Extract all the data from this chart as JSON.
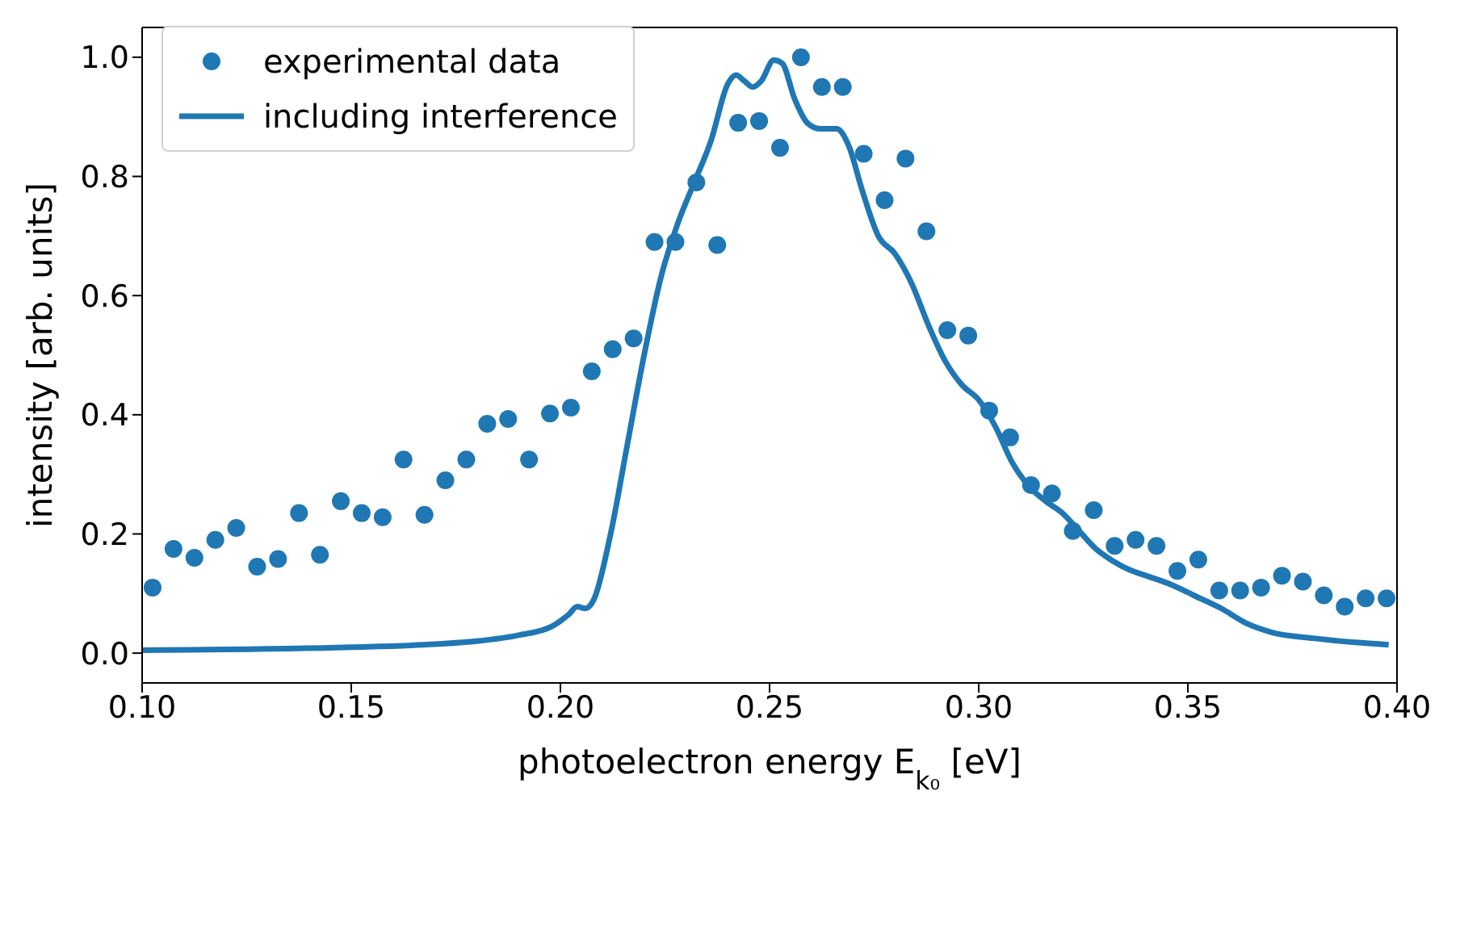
{
  "chart_data": {
    "type": "scatter",
    "xlabel": "photoelectron energy E$_{k₀}$ [eV]",
    "ylabel": "intensity [arb. units]",
    "xlim": [
      0.1,
      0.4
    ],
    "ylim": [
      -0.05,
      1.05
    ],
    "xticks": [
      {
        "value": 0.1,
        "label": "0.10"
      },
      {
        "value": 0.15,
        "label": "0.15"
      },
      {
        "value": 0.2,
        "label": "0.20"
      },
      {
        "value": 0.25,
        "label": "0.25"
      },
      {
        "value": 0.3,
        "label": "0.30"
      },
      {
        "value": 0.35,
        "label": "0.35"
      },
      {
        "value": 0.4,
        "label": "0.40"
      }
    ],
    "yticks": [
      {
        "value": 0,
        "label": "0.0"
      },
      {
        "value": 0.2,
        "label": "0.2"
      },
      {
        "value": 0.4,
        "label": "0.4"
      },
      {
        "value": 0.6,
        "label": "0.6"
      },
      {
        "value": 0.8,
        "label": "0.8"
      },
      {
        "value": 1,
        "label": "1.0"
      }
    ],
    "grid": false,
    "legend": "top left",
    "series": [
      {
        "name": "experimental data",
        "marker": "circle",
        "color": "#1f77b4",
        "x": [
          0.1025,
          0.1075,
          0.1125,
          0.1175,
          0.1225,
          0.1275,
          0.1325,
          0.1375,
          0.1425,
          0.1475,
          0.1525,
          0.1575,
          0.1625,
          0.1675,
          0.1725,
          0.1775,
          0.1825,
          0.1875,
          0.1925,
          0.1975,
          0.2025,
          0.2075,
          0.2125,
          0.2175,
          0.2225,
          0.2275,
          0.2325,
          0.2375,
          0.2425,
          0.2475,
          0.2525,
          0.2575,
          0.2625,
          0.2675,
          0.2725,
          0.2775,
          0.2825,
          0.2875,
          0.2925,
          0.2975,
          0.3025,
          0.3075,
          0.3125,
          0.3175,
          0.3225,
          0.3275,
          0.3325,
          0.3375,
          0.3425,
          0.3475,
          0.3525,
          0.3575,
          0.3625,
          0.3675,
          0.3725,
          0.3775,
          0.3825,
          0.3875,
          0.3925,
          0.3975
        ],
        "values": [
          0.11,
          0.175,
          0.16,
          0.19,
          0.21,
          0.145,
          0.158,
          0.235,
          0.165,
          0.255,
          0.235,
          0.228,
          0.325,
          0.232,
          0.29,
          0.325,
          0.385,
          0.393,
          0.325,
          0.402,
          0.412,
          0.473,
          0.51,
          0.528,
          0.69,
          0.69,
          0.79,
          0.685,
          0.89,
          0.893,
          0.848,
          1.0,
          0.95,
          0.95,
          0.838,
          0.76,
          0.83,
          0.708,
          0.542,
          0.533,
          0.407,
          0.362,
          0.282,
          0.268,
          0.205,
          0.24,
          0.18,
          0.19,
          0.18,
          0.138,
          0.157,
          0.105,
          0.105,
          0.11,
          0.13,
          0.12,
          0.097,
          0.078,
          0.092,
          0.092
        ]
      },
      {
        "name": "including interference",
        "type": "line",
        "marker": "none",
        "line_style": "solid",
        "color": "#1f77b4",
        "x": [
          0.1,
          0.15,
          0.17,
          0.18,
          0.19,
          0.198,
          0.202,
          0.204,
          0.206,
          0.208,
          0.212,
          0.216,
          0.22,
          0.224,
          0.228,
          0.232,
          0.236,
          0.24,
          0.242,
          0.244,
          0.246,
          0.248,
          0.251,
          0.253,
          0.256,
          0.259,
          0.262,
          0.266,
          0.269,
          0.272,
          0.276,
          0.28,
          0.284,
          0.288,
          0.292,
          0.296,
          0.3,
          0.304,
          0.308,
          0.312,
          0.316,
          0.32,
          0.324,
          0.328,
          0.332,
          0.336,
          0.34,
          0.346,
          0.352,
          0.358,
          0.364,
          0.37,
          0.38,
          0.39,
          0.398
        ],
        "values": [
          0.005,
          0.01,
          0.015,
          0.02,
          0.03,
          0.045,
          0.065,
          0.078,
          0.075,
          0.09,
          0.2,
          0.35,
          0.5,
          0.63,
          0.72,
          0.79,
          0.86,
          0.955,
          0.97,
          0.96,
          0.95,
          0.96,
          0.995,
          0.99,
          0.93,
          0.89,
          0.88,
          0.88,
          0.85,
          0.78,
          0.7,
          0.67,
          0.62,
          0.55,
          0.49,
          0.45,
          0.425,
          0.38,
          0.32,
          0.28,
          0.255,
          0.235,
          0.205,
          0.175,
          0.155,
          0.14,
          0.13,
          0.115,
          0.095,
          0.075,
          0.05,
          0.035,
          0.025,
          0.018,
          0.014
        ]
      }
    ]
  }
}
